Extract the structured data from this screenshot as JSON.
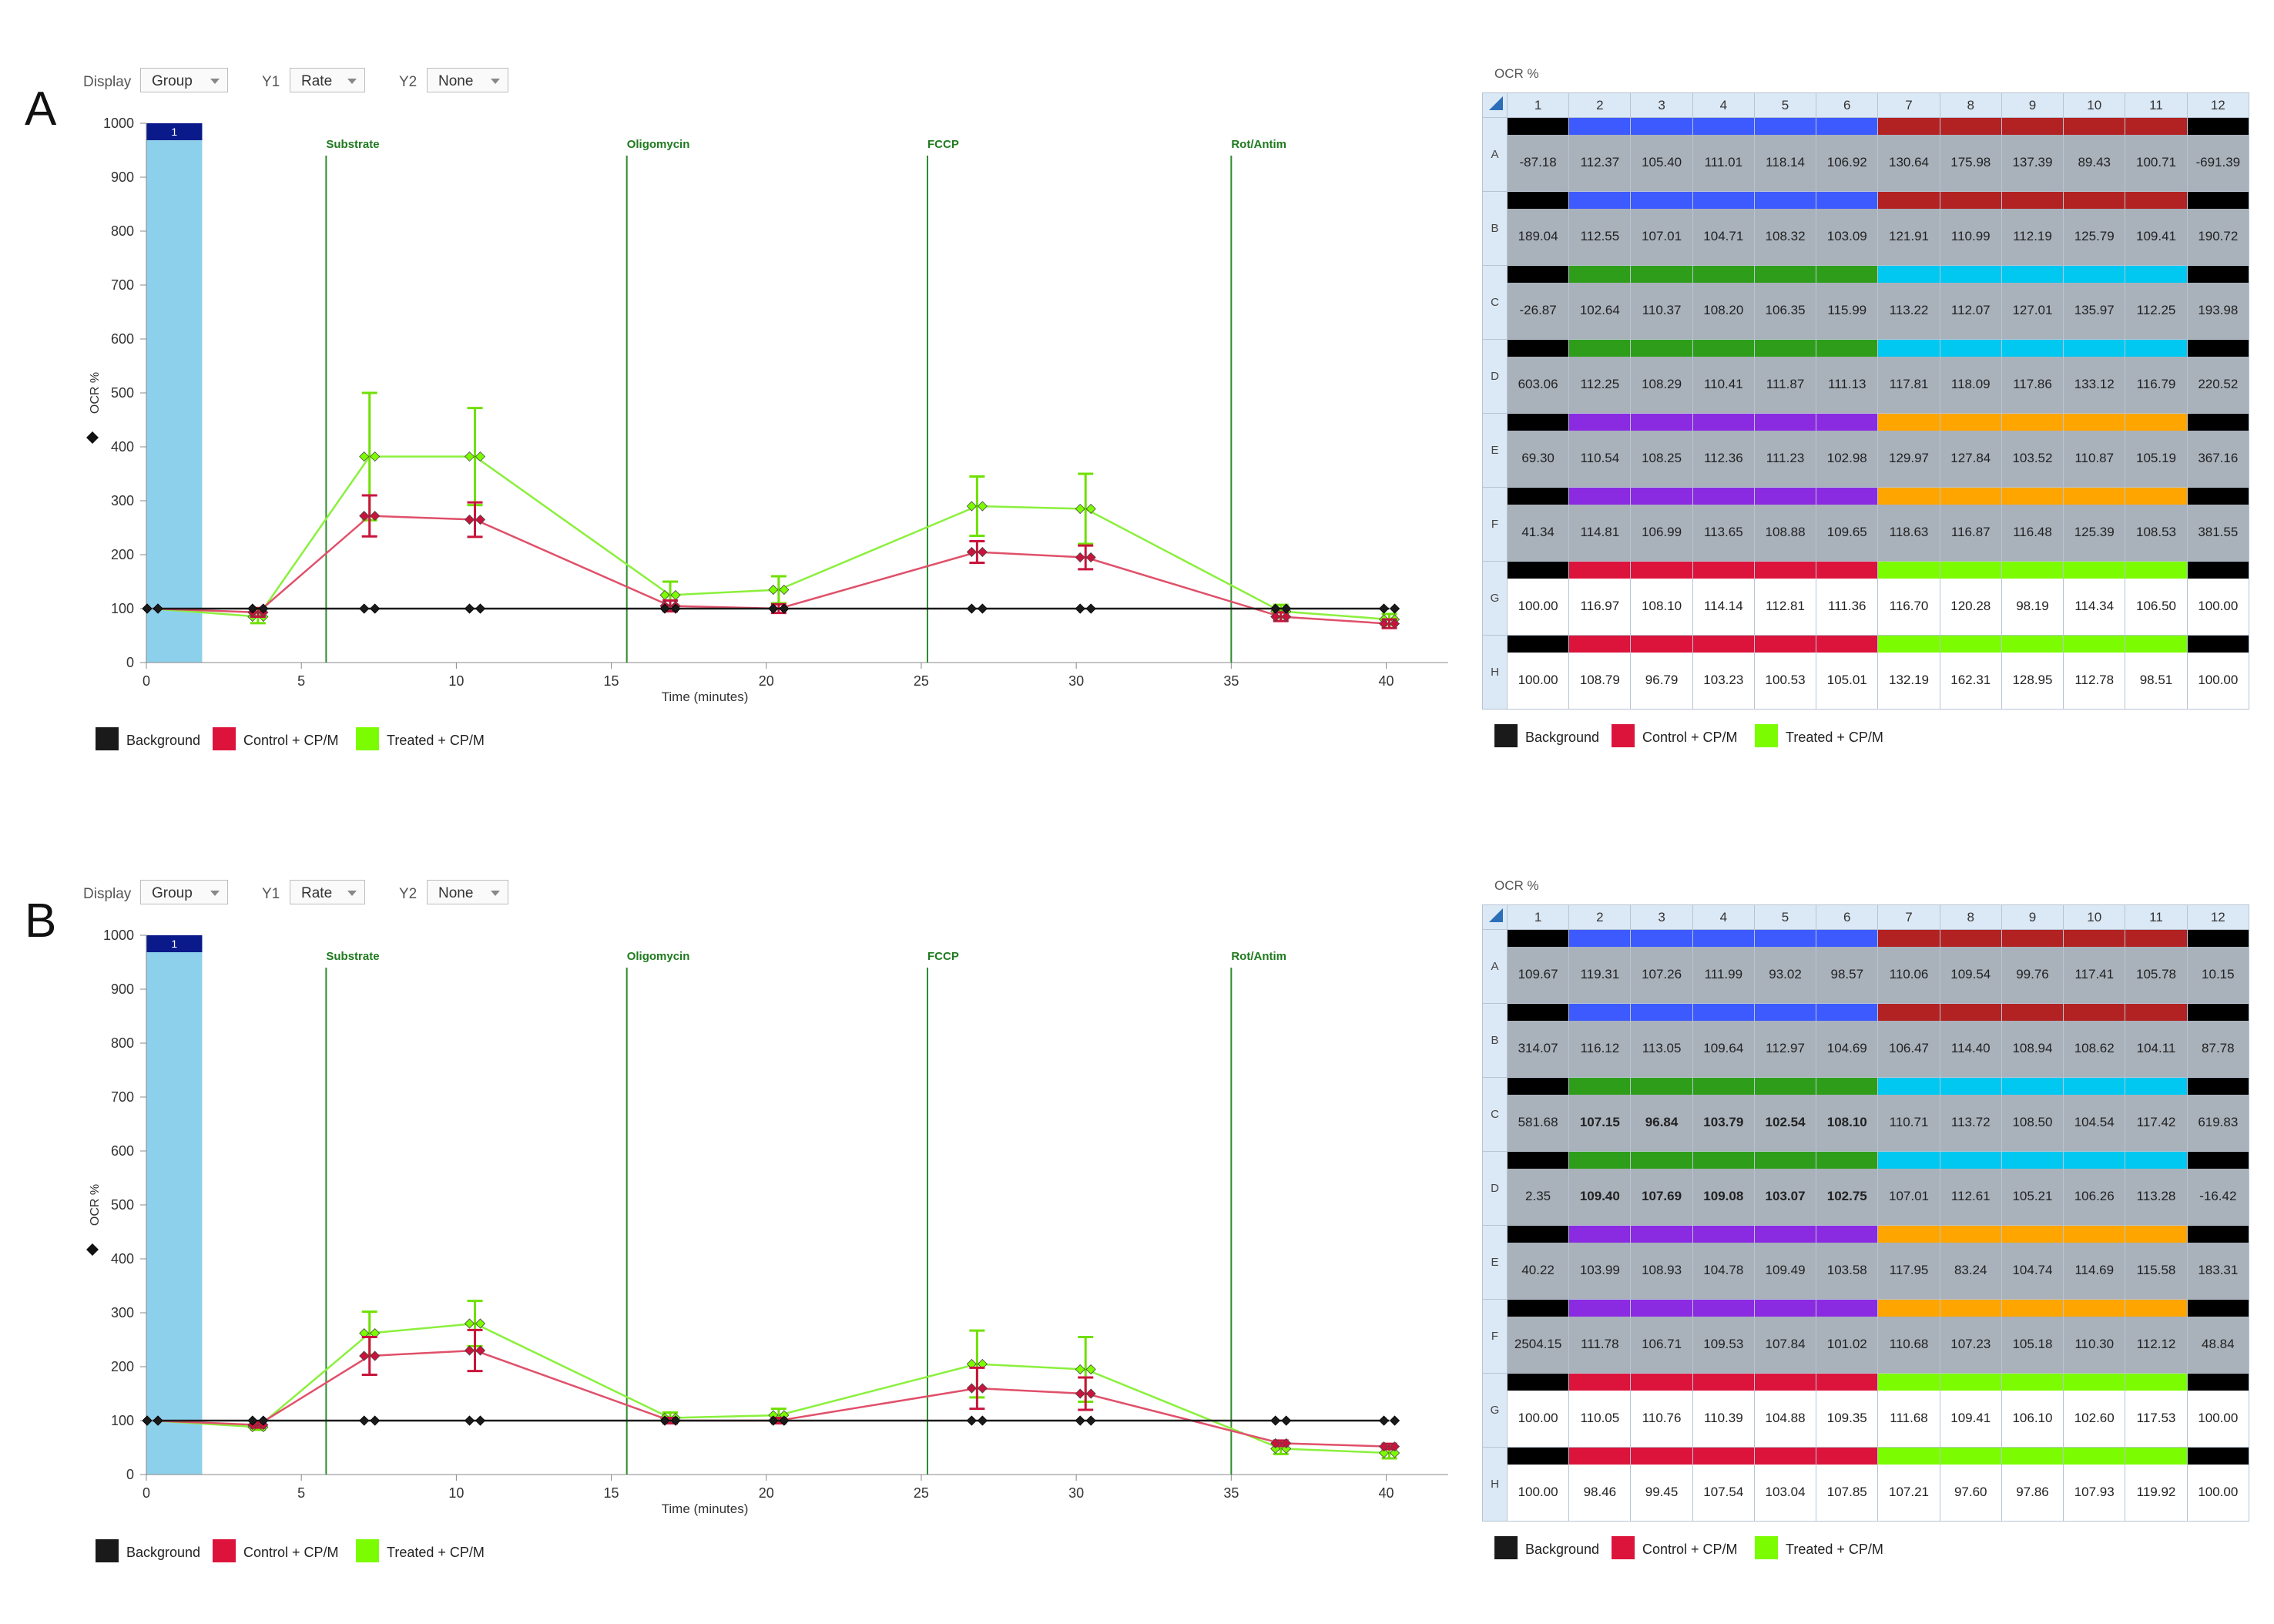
{
  "controls": {
    "display_label": "Display",
    "display_value": "Group",
    "y1_label": "Y1",
    "y1_value": "Rate",
    "y2_label": "Y2",
    "y2_value": "None"
  },
  "legend": [
    {
      "label": "Background",
      "color": "#1a1a1a"
    },
    {
      "label": "Control + CP/M",
      "color": "#dc143c"
    },
    {
      "label": "Treated + CP/M",
      "color": "#7cfc00"
    }
  ],
  "plate_title": "OCR %",
  "plate_columns": [
    "1",
    "2",
    "3",
    "4",
    "5",
    "6",
    "7",
    "8",
    "9",
    "10",
    "11",
    "12"
  ],
  "plate_rows": [
    "A",
    "B",
    "C",
    "D",
    "E",
    "F",
    "G",
    "H"
  ],
  "group_colors": {
    "K": "#000000",
    "Bl": "#3d5aff",
    "Rd": "#b22222",
    "Gn": "#2e9e1a",
    "Cy": "#00c8f0",
    "Pu": "#8a2be2",
    "Or": "#ffa500",
    "Cr": "#dc143c",
    "Lg": "#7cfc00"
  },
  "plate_layout": [
    [
      "K",
      "Bl",
      "Bl",
      "Bl",
      "Bl",
      "Bl",
      "Rd",
      "Rd",
      "Rd",
      "Rd",
      "Rd",
      "K"
    ],
    [
      "K",
      "Bl",
      "Bl",
      "Bl",
      "Bl",
      "Bl",
      "Rd",
      "Rd",
      "Rd",
      "Rd",
      "Rd",
      "K"
    ],
    [
      "K",
      "Gn",
      "Gn",
      "Gn",
      "Gn",
      "Gn",
      "Cy",
      "Cy",
      "Cy",
      "Cy",
      "Cy",
      "K"
    ],
    [
      "K",
      "Gn",
      "Gn",
      "Gn",
      "Gn",
      "Gn",
      "Cy",
      "Cy",
      "Cy",
      "Cy",
      "Cy",
      "K"
    ],
    [
      "K",
      "Pu",
      "Pu",
      "Pu",
      "Pu",
      "Pu",
      "Or",
      "Or",
      "Or",
      "Or",
      "Or",
      "K"
    ],
    [
      "K",
      "Pu",
      "Pu",
      "Pu",
      "Pu",
      "Pu",
      "Or",
      "Or",
      "Or",
      "Or",
      "Or",
      "K"
    ],
    [
      "K",
      "Cr",
      "Cr",
      "Cr",
      "Cr",
      "Cr",
      "Lg",
      "Lg",
      "Lg",
      "Lg",
      "Lg",
      "K"
    ],
    [
      "K",
      "Cr",
      "Cr",
      "Cr",
      "Cr",
      "Cr",
      "Lg",
      "Lg",
      "Lg",
      "Lg",
      "Lg",
      "K"
    ]
  ],
  "selected_rows": [
    "G",
    "H"
  ],
  "chart_data": [
    {
      "panel": "A",
      "type": "line",
      "ylabel": "OCR %",
      "xlabel": "Time (minutes)",
      "ylim": [
        0,
        1000
      ],
      "xlim": [
        0,
        42
      ],
      "yticks": [
        0,
        100,
        200,
        300,
        400,
        500,
        600,
        700,
        800,
        900,
        1000
      ],
      "xticks": [
        0,
        5,
        10,
        15,
        20,
        25,
        30,
        35,
        40
      ],
      "highlight_band": {
        "x_range": [
          0,
          1.8
        ],
        "label": "1"
      },
      "injections": [
        {
          "label": "Substrate",
          "x": 5.8
        },
        {
          "label": "Oligomycin",
          "x": 15.5
        },
        {
          "label": "FCCP",
          "x": 25.2
        },
        {
          "label": "Rot/Antim",
          "x": 35
        }
      ],
      "series": [
        {
          "name": "Background",
          "x": [
            0.2,
            3.6,
            7.2,
            10.6,
            16.9,
            20.4,
            26.8,
            30.3,
            36.6,
            40.1
          ],
          "y": [
            100,
            100,
            100,
            100,
            100,
            100,
            100,
            100,
            100,
            100
          ],
          "err": [
            0,
            0,
            0,
            0,
            0,
            0,
            0,
            0,
            0,
            0
          ]
        },
        {
          "name": "Control + CP/M",
          "x": [
            0.2,
            3.6,
            7.2,
            10.6,
            16.9,
            20.4,
            26.8,
            30.3,
            36.6,
            40.1
          ],
          "y": [
            100,
            93,
            272,
            265,
            105,
            100,
            205,
            195,
            85,
            72
          ],
          "err": [
            0,
            8,
            38,
            32,
            10,
            8,
            20,
            22,
            8,
            8
          ]
        },
        {
          "name": "Treated + CP/M",
          "x": [
            0.2,
            3.6,
            7.2,
            10.6,
            16.9,
            20.4,
            26.8,
            30.3,
            36.6,
            40.1
          ],
          "y": [
            100,
            85,
            382,
            382,
            125,
            135,
            290,
            285,
            95,
            80
          ],
          "err": [
            0,
            12,
            118,
            90,
            25,
            25,
            55,
            65,
            12,
            10
          ]
        }
      ]
    },
    {
      "panel": "B",
      "type": "line",
      "ylabel": "OCR %",
      "xlabel": "Time (minutes)",
      "ylim": [
        0,
        1000
      ],
      "xlim": [
        0,
        42
      ],
      "yticks": [
        0,
        100,
        200,
        300,
        400,
        500,
        600,
        700,
        800,
        900,
        1000
      ],
      "xticks": [
        0,
        5,
        10,
        15,
        20,
        25,
        30,
        35,
        40
      ],
      "highlight_band": {
        "x_range": [
          0,
          1.8
        ],
        "label": "1"
      },
      "injections": [
        {
          "label": "Substrate",
          "x": 5.8
        },
        {
          "label": "Oligomycin",
          "x": 15.5
        },
        {
          "label": "FCCP",
          "x": 25.2
        },
        {
          "label": "Rot/Antim",
          "x": 35
        }
      ],
      "series": [
        {
          "name": "Background",
          "x": [
            0.2,
            3.6,
            7.2,
            10.6,
            16.9,
            20.4,
            26.8,
            30.3,
            36.6,
            40.1
          ],
          "y": [
            100,
            100,
            100,
            100,
            100,
            100,
            100,
            100,
            100,
            100
          ],
          "err": [
            0,
            0,
            0,
            0,
            0,
            0,
            0,
            0,
            0,
            0
          ]
        },
        {
          "name": "Control + CP/M",
          "x": [
            0.2,
            3.6,
            7.2,
            10.6,
            16.9,
            20.4,
            26.8,
            30.3,
            36.6,
            40.1
          ],
          "y": [
            100,
            92,
            220,
            230,
            100,
            100,
            160,
            150,
            58,
            52
          ],
          "err": [
            0,
            5,
            35,
            38,
            5,
            5,
            38,
            30,
            5,
            5
          ]
        },
        {
          "name": "Treated + CP/M",
          "x": [
            0.2,
            3.6,
            7.2,
            10.6,
            16.9,
            20.4,
            26.8,
            30.3,
            36.6,
            40.1
          ],
          "y": [
            100,
            88,
            262,
            280,
            105,
            110,
            205,
            195,
            48,
            40
          ],
          "err": [
            0,
            5,
            40,
            42,
            10,
            12,
            62,
            60,
            10,
            10
          ]
        }
      ]
    }
  ],
  "panels": [
    {
      "label": "A",
      "plate_values": [
        [
          "-87.18",
          "112.37",
          "105.40",
          "111.01",
          "118.14",
          "106.92",
          "130.64",
          "175.98",
          "137.39",
          "89.43",
          "100.71",
          "-691.39"
        ],
        [
          "189.04",
          "112.55",
          "107.01",
          "104.71",
          "108.32",
          "103.09",
          "121.91",
          "110.99",
          "112.19",
          "125.79",
          "109.41",
          "190.72"
        ],
        [
          "-26.87",
          "102.64",
          "110.37",
          "108.20",
          "106.35",
          "115.99",
          "113.22",
          "112.07",
          "127.01",
          "135.97",
          "112.25",
          "193.98"
        ],
        [
          "603.06",
          "112.25",
          "108.29",
          "110.41",
          "111.87",
          "111.13",
          "117.81",
          "118.09",
          "117.86",
          "133.12",
          "116.79",
          "220.52"
        ],
        [
          "69.30",
          "110.54",
          "108.25",
          "112.36",
          "111.23",
          "102.98",
          "129.97",
          "127.84",
          "103.52",
          "110.87",
          "105.19",
          "367.16"
        ],
        [
          "41.34",
          "114.81",
          "106.99",
          "113.65",
          "108.88",
          "109.65",
          "118.63",
          "116.87",
          "116.48",
          "125.39",
          "108.53",
          "381.55"
        ],
        [
          "100.00",
          "116.97",
          "108.10",
          "114.14",
          "112.81",
          "111.36",
          "116.70",
          "120.28",
          "98.19",
          "114.34",
          "106.50",
          "100.00"
        ],
        [
          "100.00",
          "108.79",
          "96.79",
          "103.23",
          "100.53",
          "105.01",
          "132.19",
          "162.31",
          "128.95",
          "112.78",
          "98.51",
          "100.00"
        ]
      ],
      "bold_cells": []
    },
    {
      "label": "B",
      "plate_values": [
        [
          "109.67",
          "119.31",
          "107.26",
          "111.99",
          "93.02",
          "98.57",
          "110.06",
          "109.54",
          "99.76",
          "117.41",
          "105.78",
          "10.15"
        ],
        [
          "314.07",
          "116.12",
          "113.05",
          "109.64",
          "112.97",
          "104.69",
          "106.47",
          "114.40",
          "108.94",
          "108.62",
          "104.11",
          "87.78"
        ],
        [
          "581.68",
          "107.15",
          "96.84",
          "103.79",
          "102.54",
          "108.10",
          "110.71",
          "113.72",
          "108.50",
          "104.54",
          "117.42",
          "619.83"
        ],
        [
          "2.35",
          "109.40",
          "107.69",
          "109.08",
          "103.07",
          "102.75",
          "107.01",
          "112.61",
          "105.21",
          "106.26",
          "113.28",
          "-16.42"
        ],
        [
          "40.22",
          "103.99",
          "108.93",
          "104.78",
          "109.49",
          "103.58",
          "117.95",
          "83.24",
          "104.74",
          "114.69",
          "115.58",
          "183.31"
        ],
        [
          "2504.15",
          "111.78",
          "106.71",
          "109.53",
          "107.84",
          "101.02",
          "110.68",
          "107.23",
          "105.18",
          "110.30",
          "112.12",
          "48.84"
        ],
        [
          "100.00",
          "110.05",
          "110.76",
          "110.39",
          "104.88",
          "109.35",
          "111.68",
          "109.41",
          "106.10",
          "102.60",
          "117.53",
          "100.00"
        ],
        [
          "100.00",
          "98.46",
          "99.45",
          "107.54",
          "103.04",
          "107.85",
          "107.21",
          "97.60",
          "97.86",
          "107.93",
          "119.92",
          "100.00"
        ]
      ],
      "bold_cells": [
        "C2",
        "C3",
        "C4",
        "C5",
        "C6",
        "D2",
        "D3",
        "D4",
        "D5",
        "D6"
      ]
    }
  ]
}
